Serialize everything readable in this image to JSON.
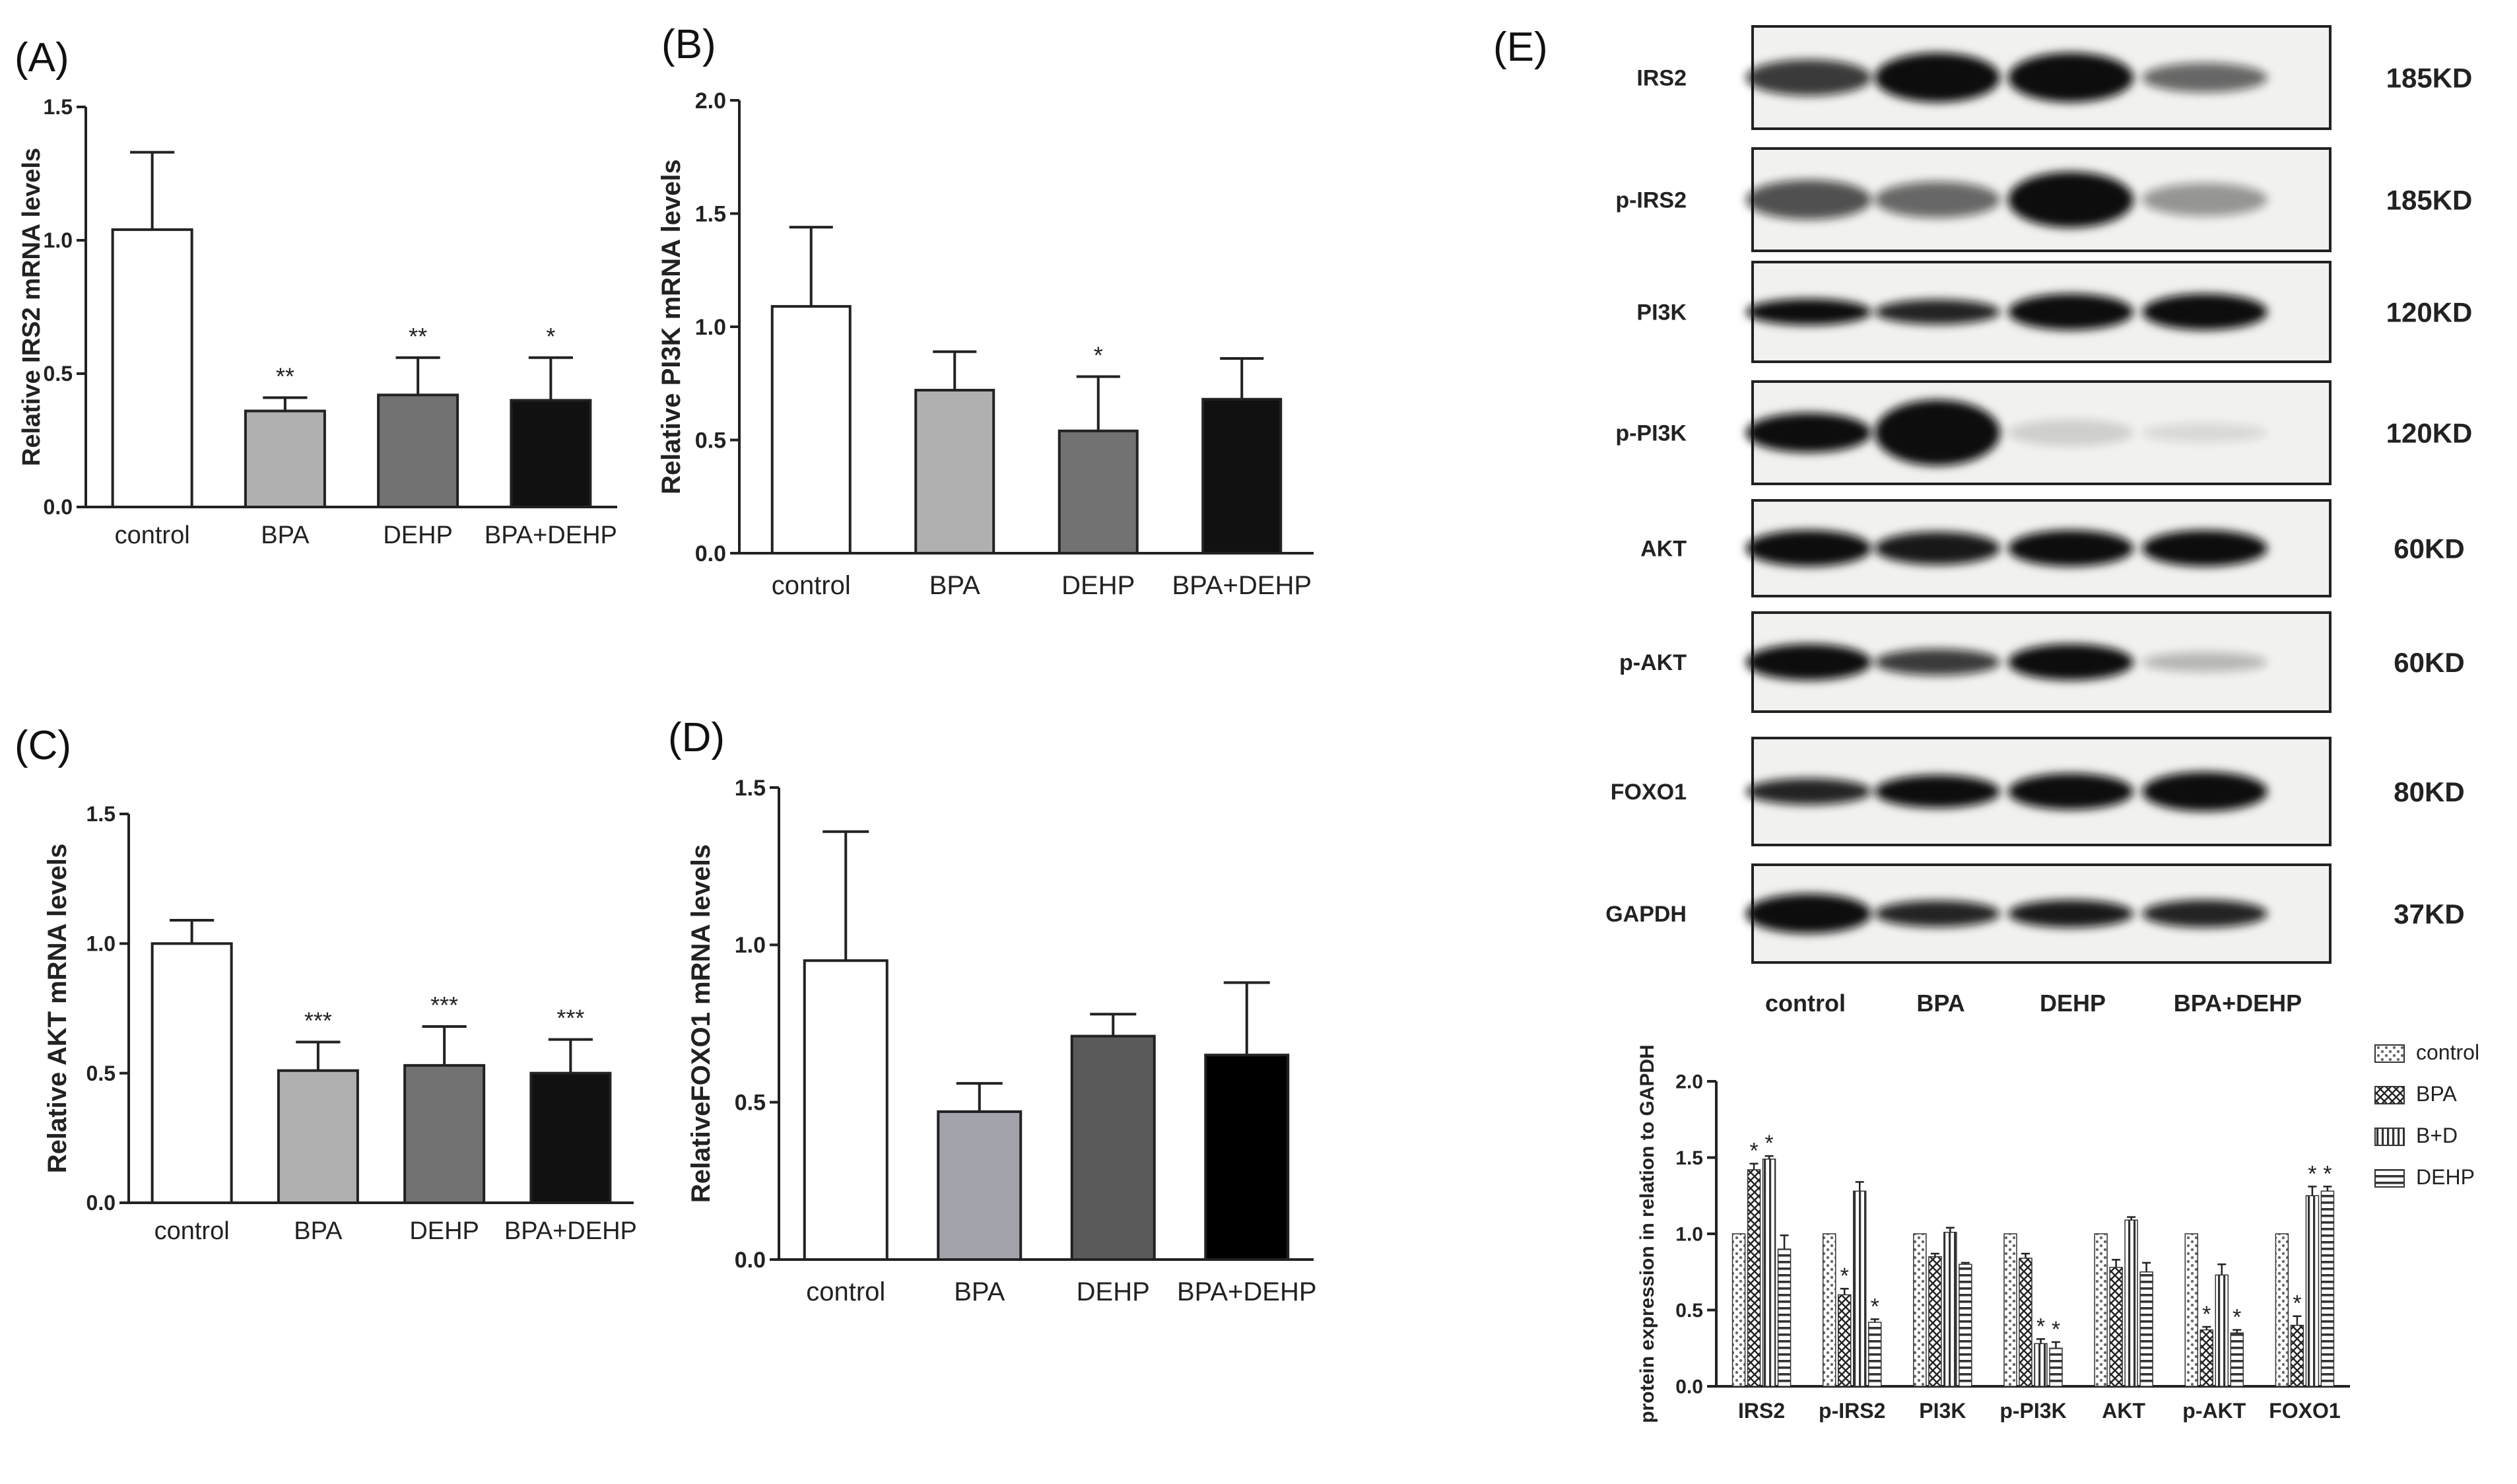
{
  "chart_data": [
    {
      "panel": "(A)",
      "type": "bar",
      "title": "",
      "ylabel": "Relative IRS2 mRNA levels",
      "xlabel": "",
      "ylim": [
        0,
        1.5
      ],
      "yticks": [
        "0.0",
        "0.5",
        "1.0",
        "1.5"
      ],
      "categories": [
        "control",
        "BPA",
        "DEHP",
        "BPA+DEHP"
      ],
      "values": [
        1.04,
        0.36,
        0.42,
        0.4
      ],
      "errors": [
        0.29,
        0.05,
        0.14,
        0.16
      ],
      "annotations": [
        "",
        "**",
        "**",
        "*"
      ],
      "colors": [
        "#ffffff",
        "#b0b0b0",
        "#727272",
        "#111111"
      ]
    },
    {
      "panel": "(B)",
      "type": "bar",
      "title": "",
      "ylabel": "Relative PI3K mRNA levels",
      "xlabel": "",
      "ylim": [
        0,
        2.0
      ],
      "yticks": [
        "0.0",
        "0.5",
        "1.0",
        "1.5",
        "2.0"
      ],
      "categories": [
        "control",
        "BPA",
        "DEHP",
        "BPA+DEHP"
      ],
      "values": [
        1.09,
        0.72,
        0.54,
        0.68
      ],
      "errors": [
        0.35,
        0.17,
        0.24,
        0.18
      ],
      "annotations": [
        "",
        "",
        "*",
        ""
      ],
      "colors": [
        "#ffffff",
        "#b0b0b0",
        "#727272",
        "#111111"
      ]
    },
    {
      "panel": "(C)",
      "type": "bar",
      "title": "",
      "ylabel": "Relative AKT mRNA levels",
      "xlabel": "",
      "ylim": [
        0,
        1.5
      ],
      "yticks": [
        "0.0",
        "0.5",
        "1.0",
        "1.5"
      ],
      "categories": [
        "control",
        "BPA",
        "DEHP",
        "BPA+DEHP"
      ],
      "values": [
        1.0,
        0.51,
        0.53,
        0.5
      ],
      "errors": [
        0.09,
        0.11,
        0.15,
        0.13
      ],
      "annotations": [
        "",
        "***",
        "***",
        "***"
      ],
      "colors": [
        "#ffffff",
        "#b0b0b0",
        "#727272",
        "#111111"
      ]
    },
    {
      "panel": "(D)",
      "type": "bar",
      "title": "",
      "ylabel": "RelativeFOXO1 mRNA levels",
      "xlabel": "",
      "ylim": [
        0,
        1.5
      ],
      "yticks": [
        "0.0",
        "0.5",
        "1.0",
        "1.5"
      ],
      "categories": [
        "control",
        "BPA",
        "DEHP",
        "BPA+DEHP"
      ],
      "values": [
        0.95,
        0.47,
        0.71,
        0.65
      ],
      "errors": [
        0.41,
        0.09,
        0.07,
        0.23
      ],
      "annotations": [
        "",
        "",
        "",
        ""
      ],
      "colors": [
        "#ffffff",
        "#a3a3ab",
        "#5a5a5a",
        "#000000"
      ]
    },
    {
      "panel": "(E)",
      "type": "bar",
      "title": "",
      "ylabel": "protein expression in relation to GAPDH",
      "xlabel": "",
      "ylim": [
        0,
        2.0
      ],
      "yticks": [
        "0.0",
        "0.5",
        "1.0",
        "1.5",
        "2.0"
      ],
      "categories": [
        "IRS2",
        "p-IRS2",
        "PI3K",
        "p-PI3K",
        "AKT",
        "p-AKT",
        "FOXO1"
      ],
      "legend": [
        "control",
        "BPA",
        "B+D",
        "DEHP"
      ],
      "legend_position": "top-right",
      "series": [
        {
          "name": "control",
          "values": [
            1.0,
            1.0,
            1.0,
            1.0,
            1.0,
            1.0,
            1.0
          ],
          "errors": [
            0,
            0,
            0,
            0,
            0,
            0,
            0
          ],
          "annotations": [
            "",
            "",
            "",
            "",
            "",
            "",
            ""
          ]
        },
        {
          "name": "BPA",
          "values": [
            1.42,
            0.6,
            0.85,
            0.84,
            0.78,
            0.37,
            0.4
          ],
          "errors": [
            0.04,
            0.04,
            0.02,
            0.03,
            0.05,
            0.02,
            0.06
          ],
          "annotations": [
            "*",
            "*",
            "",
            "",
            "",
            "*",
            "*"
          ]
        },
        {
          "name": "B+D",
          "values": [
            1.49,
            1.28,
            1.01,
            0.28,
            1.09,
            0.73,
            1.25
          ],
          "errors": [
            0.02,
            0.06,
            0.03,
            0.03,
            0.02,
            0.07,
            0.06
          ],
          "annotations": [
            "*",
            "",
            "",
            "*",
            "",
            "",
            "*"
          ]
        },
        {
          "name": "DEHP",
          "values": [
            0.9,
            0.42,
            0.8,
            0.25,
            0.75,
            0.35,
            1.28
          ],
          "errors": [
            0.09,
            0.02,
            0.01,
            0.04,
            0.06,
            0.02,
            0.03
          ],
          "annotations": [
            "",
            "*",
            "",
            "*",
            "",
            "*",
            "*"
          ]
        }
      ]
    }
  ],
  "western_blot": {
    "panel_label": "(E)",
    "rows": [
      {
        "protein": "IRS2",
        "size": "185KD"
      },
      {
        "protein": "p-IRS2",
        "size": "185KD"
      },
      {
        "protein": "PI3K",
        "size": "120KD"
      },
      {
        "protein": "p-PI3K",
        "size": "120KD"
      },
      {
        "protein": "AKT",
        "size": "60KD"
      },
      {
        "protein": "p-AKT",
        "size": "60KD"
      },
      {
        "protein": "FOXO1",
        "size": "80KD"
      },
      {
        "protein": "GAPDH",
        "size": "37KD"
      }
    ],
    "lanes": [
      "control",
      "BPA",
      "DEHP",
      "BPA+DEHP"
    ]
  }
}
